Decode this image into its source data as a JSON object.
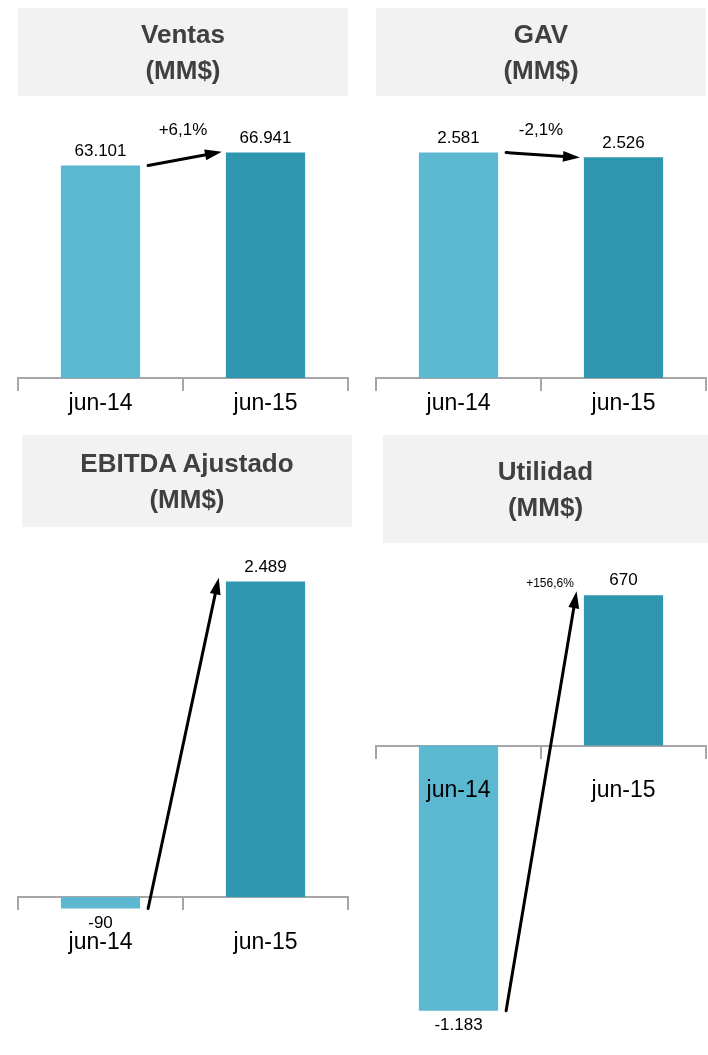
{
  "chart_data": [
    {
      "type": "bar",
      "title": "Ventas (MM$)",
      "categories": [
        "jun-14",
        "jun-15"
      ],
      "values": [
        63101,
        66941
      ],
      "colors": [
        "#5bb8d0",
        "#2e96ae"
      ],
      "value_labels": [
        "63.101",
        "66.941"
      ],
      "annotations": [
        "+6,1%"
      ],
      "legend": false
    },
    {
      "type": "bar",
      "title": "GAV (MM$)",
      "categories": [
        "jun-14",
        "jun-15"
      ],
      "values": [
        2581,
        2526
      ],
      "colors": [
        "#5bb8d0",
        "#2e96ae"
      ],
      "value_labels": [
        "2.581",
        "2.526"
      ],
      "annotations": [
        "-2,1%"
      ],
      "legend": false
    },
    {
      "type": "bar",
      "title": "EBITDA Ajustado (MM$)",
      "categories": [
        "jun-14",
        "jun-15"
      ],
      "values": [
        -90,
        2489
      ],
      "colors": [
        "#5bb8d0",
        "#2e96ae"
      ],
      "value_labels": [
        "-90",
        "2.489"
      ],
      "legend": false
    },
    {
      "type": "bar",
      "title": "Utilidad (MM$)",
      "categories": [
        "jun-14",
        "jun-15"
      ],
      "values": [
        -1183,
        670
      ],
      "colors": [
        "#5bb8d0",
        "#2e96ae"
      ],
      "value_labels": [
        "-1.183",
        "670"
      ],
      "annotations": [
        "+156,6%"
      ],
      "legend": false
    }
  ]
}
